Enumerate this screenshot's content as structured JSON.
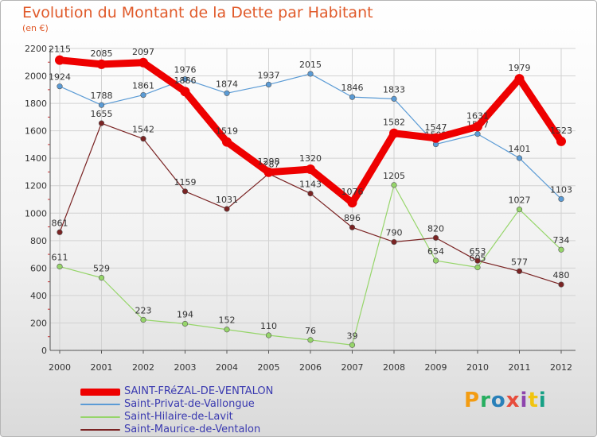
{
  "header": {
    "title": "Evolution du Montant de la Dette par Habitant",
    "unit": "(en €)"
  },
  "brand": {
    "name": "Proxiti",
    "letters": [
      "P",
      "r",
      "o",
      "x",
      "i",
      "t",
      "i"
    ],
    "colors": [
      "#f39c12",
      "#27ae60",
      "#2980b9",
      "#e74c3c",
      "#8e44ad",
      "#f1c40f",
      "#16a085"
    ]
  },
  "chart_data": {
    "type": "line",
    "x": [
      "2000",
      "2001",
      "2002",
      "2003",
      "2004",
      "2005",
      "2006",
      "2007",
      "2008",
      "2009",
      "2010",
      "2011",
      "2012"
    ],
    "ylim": [
      0,
      2200
    ],
    "yticks": [
      0,
      200,
      400,
      600,
      800,
      1000,
      1200,
      1400,
      1600,
      1800,
      2000,
      2200
    ],
    "grid": true,
    "legend_position": "bottom-left",
    "series": [
      {
        "name": "SAINT-FRéZAL-DE-VENTALON",
        "color": "#ee0000",
        "width": 9,
        "values": [
          2115,
          2085,
          2097,
          1886,
          1519,
          1298,
          1320,
          1076,
          1582,
          1547,
          1631,
          1979,
          1523
        ]
      },
      {
        "name": "Saint-Privat-de-Vallongue",
        "color": "#5b9bd5",
        "width": 1.2,
        "values": [
          1924,
          1788,
          1861,
          1976,
          1874,
          1937,
          2015,
          1846,
          1833,
          1502,
          1577,
          1401,
          1103
        ]
      },
      {
        "name": "Saint-Hilaire-de-Lavit",
        "color": "#96d56a",
        "width": 1.2,
        "values": [
          611,
          529,
          223,
          194,
          152,
          110,
          76,
          39,
          1205,
          654,
          605,
          1027,
          734
        ]
      },
      {
        "name": "Saint-Maurice-de-Ventalon",
        "color": "#7a2323",
        "width": 1.2,
        "values": [
          861,
          1655,
          1542,
          1159,
          1031,
          1287,
          1143,
          896,
          790,
          820,
          653,
          577,
          480
        ]
      }
    ]
  }
}
